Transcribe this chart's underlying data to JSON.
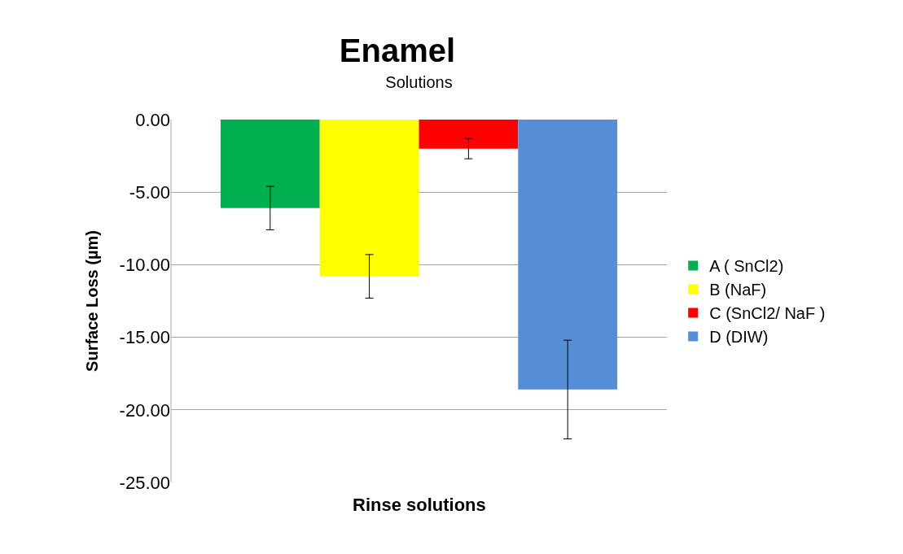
{
  "chart_data": {
    "type": "bar",
    "title": "Enamel",
    "xlabel": "Rinse solutions",
    "ylabel": "Surface Loss (µm)",
    "categories": [
      "Solutions"
    ],
    "series": [
      {
        "name": "A ( SnCl2)",
        "color": "#00b050",
        "values": [
          -6.1
        ],
        "errors": [
          1.5
        ]
      },
      {
        "name": "B (NaF)",
        "color": "#ffff00",
        "values": [
          -10.8
        ],
        "errors": [
          1.5
        ]
      },
      {
        "name": "C (SnCl2/ NaF )",
        "color": "#ff0000",
        "values": [
          -2.0
        ],
        "errors": [
          0.7
        ]
      },
      {
        "name": "D (DIW)",
        "color": "#558ed5",
        "values": [
          -18.6
        ],
        "errors": [
          3.4
        ]
      }
    ],
    "ylim": [
      -25,
      0
    ],
    "yticks": [
      {
        "value": 0,
        "label": "0.00"
      },
      {
        "value": -5,
        "label": "-5.00"
      },
      {
        "value": -10,
        "label": "-10.00"
      },
      {
        "value": -15,
        "label": "-15.00"
      },
      {
        "value": -20,
        "label": "-20.00"
      },
      {
        "value": -25,
        "label": "-25.00"
      }
    ],
    "grid": "y",
    "legend": "right"
  }
}
